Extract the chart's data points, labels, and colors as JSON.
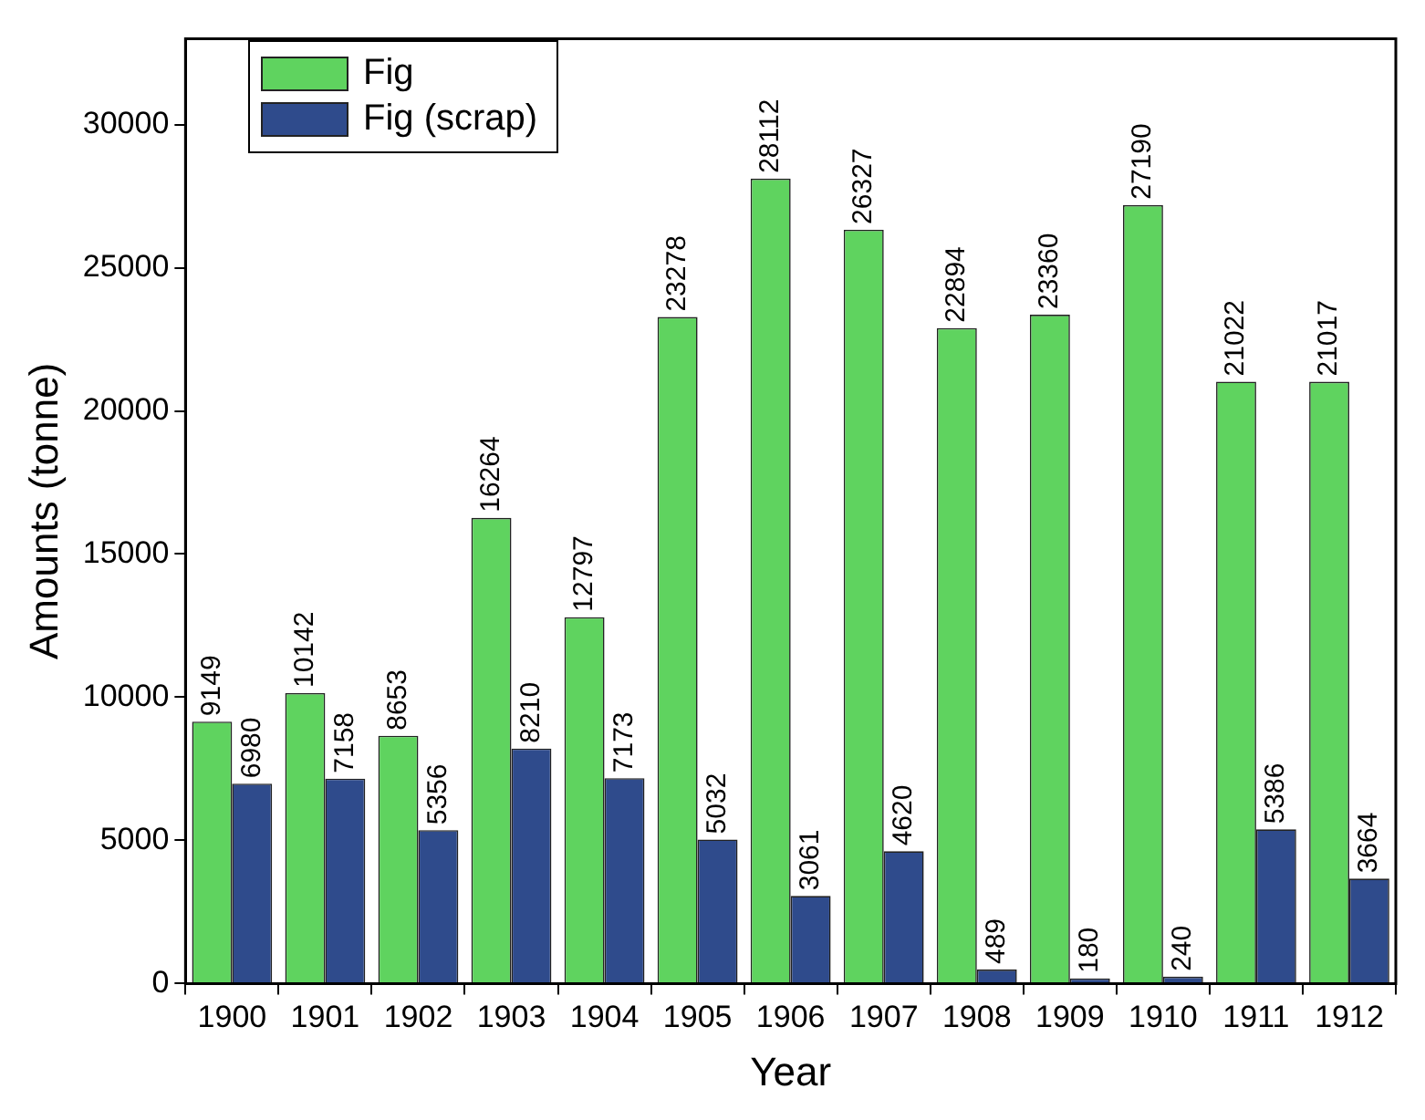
{
  "chart_data": {
    "type": "bar",
    "xlabel": "Year",
    "ylabel": "Amounts (tonne)",
    "categories": [
      "1900",
      "1901",
      "1902",
      "1903",
      "1904",
      "1905",
      "1906",
      "1907",
      "1908",
      "1909",
      "1910",
      "1911",
      "1912"
    ],
    "series": [
      {
        "name": "Fig",
        "color": "#5fd35f",
        "values": [
          9149,
          10142,
          8653,
          16264,
          12797,
          23278,
          28112,
          26327,
          22894,
          23360,
          27190,
          21022,
          21017
        ]
      },
      {
        "name": "Fig (scrap)",
        "color": "#2f4b8c",
        "values": [
          6980,
          7158,
          5356,
          8210,
          7173,
          5032,
          3061,
          4620,
          489,
          180,
          240,
          5386,
          3664
        ]
      }
    ],
    "ylim": [
      0,
      33000
    ],
    "yticks": [
      0,
      5000,
      10000,
      15000,
      20000,
      25000,
      30000
    ],
    "grid": false,
    "legend": "top left",
    "data_labels": true
  }
}
